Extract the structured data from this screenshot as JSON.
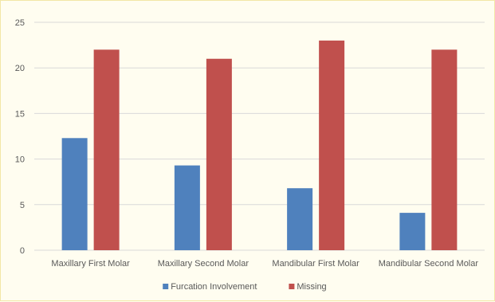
{
  "chart_data": {
    "type": "bar",
    "categories": [
      "Maxillary First Molar",
      "Maxillary Second Molar",
      "Mandibular First Molar",
      "Mandibular Second Molar"
    ],
    "series": [
      {
        "name": "Furcation Involvement",
        "color": "#4f81bd",
        "values": [
          12.3,
          9.3,
          6.8,
          4.1
        ]
      },
      {
        "name": "Missing",
        "color": "#c0504d",
        "values": [
          22,
          21,
          23,
          22
        ]
      }
    ],
    "yticks": [
      0,
      5,
      10,
      15,
      20,
      25
    ],
    "ylim": [
      0,
      25
    ],
    "grid": true,
    "legend": "bottom"
  }
}
